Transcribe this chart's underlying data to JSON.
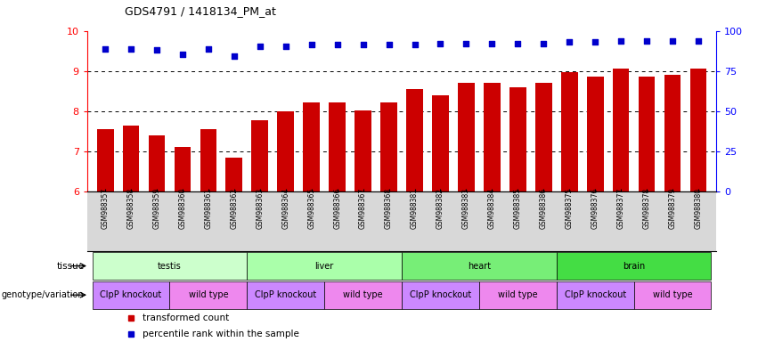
{
  "title": "GDS4791 / 1418134_PM_at",
  "samples": [
    "GSM988357",
    "GSM988358",
    "GSM988359",
    "GSM988360",
    "GSM988361",
    "GSM988362",
    "GSM988363",
    "GSM988364",
    "GSM988365",
    "GSM988366",
    "GSM988367",
    "GSM988368",
    "GSM988381",
    "GSM988382",
    "GSM988383",
    "GSM988384",
    "GSM988385",
    "GSM988386",
    "GSM988375",
    "GSM988376",
    "GSM988377",
    "GSM988378",
    "GSM988379",
    "GSM988380"
  ],
  "bar_values": [
    7.55,
    7.65,
    7.4,
    7.1,
    7.55,
    6.85,
    7.78,
    8.0,
    8.22,
    8.22,
    8.02,
    8.22,
    8.55,
    8.4,
    8.7,
    8.7,
    8.6,
    8.7,
    8.98,
    8.85,
    9.05,
    8.85,
    8.9,
    9.05
  ],
  "dot_values": [
    9.55,
    9.55,
    9.52,
    9.42,
    9.55,
    9.37,
    9.62,
    9.62,
    9.65,
    9.65,
    9.65,
    9.65,
    9.65,
    9.67,
    9.68,
    9.68,
    9.68,
    9.68,
    9.72,
    9.72,
    9.75,
    9.75,
    9.75,
    9.75
  ],
  "bar_color": "#cc0000",
  "dot_color": "#0000cc",
  "ylim_left": [
    6,
    10
  ],
  "ylim_right": [
    0,
    100
  ],
  "yticks_left": [
    6,
    7,
    8,
    9,
    10
  ],
  "yticks_right": [
    0,
    25,
    50,
    75,
    100
  ],
  "tissues": [
    {
      "label": "testis",
      "start": 0,
      "end": 6,
      "color": "#ccffcc"
    },
    {
      "label": "liver",
      "start": 6,
      "end": 12,
      "color": "#aaffaa"
    },
    {
      "label": "heart",
      "start": 12,
      "end": 18,
      "color": "#77ee77"
    },
    {
      "label": "brain",
      "start": 18,
      "end": 24,
      "color": "#44dd44"
    }
  ],
  "genotypes": [
    {
      "label": "ClpP knockout",
      "start": 0,
      "end": 3,
      "color": "#cc88ff"
    },
    {
      "label": "wild type",
      "start": 3,
      "end": 6,
      "color": "#ee88ee"
    },
    {
      "label": "ClpP knockout",
      "start": 6,
      "end": 9,
      "color": "#cc88ff"
    },
    {
      "label": "wild type",
      "start": 9,
      "end": 12,
      "color": "#ee88ee"
    },
    {
      "label": "ClpP knockout",
      "start": 12,
      "end": 15,
      "color": "#cc88ff"
    },
    {
      "label": "wild type",
      "start": 15,
      "end": 18,
      "color": "#ee88ee"
    },
    {
      "label": "ClpP knockout",
      "start": 18,
      "end": 21,
      "color": "#cc88ff"
    },
    {
      "label": "wild type",
      "start": 21,
      "end": 24,
      "color": "#ee88ee"
    }
  ],
  "legend_items": [
    {
      "label": "transformed count",
      "color": "#cc0000"
    },
    {
      "label": "percentile rank within the sample",
      "color": "#0000cc"
    }
  ],
  "tissue_label": "tissue",
  "genotype_label": "genotype/variation",
  "xtick_bg": "#d8d8d8",
  "n_samples": 24,
  "bar_bottom": 6
}
